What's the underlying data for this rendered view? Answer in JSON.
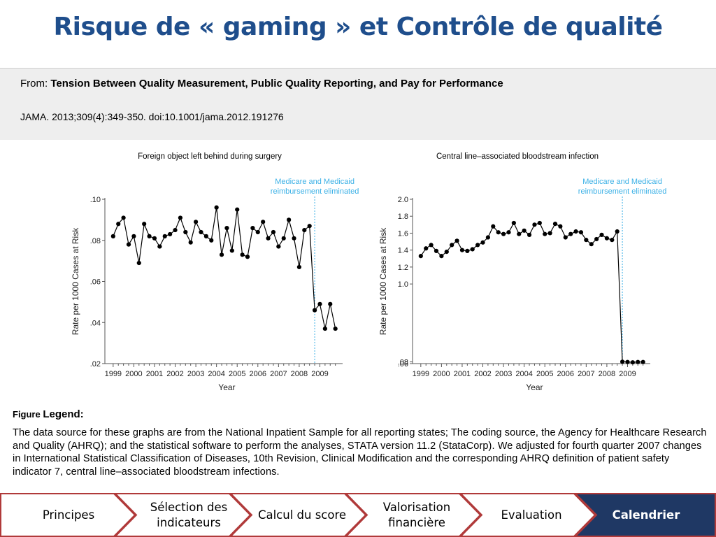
{
  "slide": {
    "title": "Risque de « gaming » et Contrôle de qualité"
  },
  "source": {
    "from_prefix": "From: ",
    "article_title": "Tension Between Quality Measurement, Public Quality Reporting, and Pay for Performance",
    "journal": "JAMA. 2013;309(4):349-350. doi:10.1001/jama.2012.191276"
  },
  "legend": {
    "label_small": "Figure ",
    "label_big": "Legend:",
    "text": "The data source for these graphs are from the National Inpatient Sample for all reporting states; The coding source, the Agency for Healthcare Research and Quality (AHRQ); and the statistical software to perform the analyses, STATA version 11.2 (StataCorp). We adjusted for fourth quarter 2007 changes in International Statistical Classification of Diseases, 10th Revision, Clinical Modification and the corresponding AHRQ definition of patient safety indicator 7, central line–associated bloodstream infections."
  },
  "nav": {
    "items": [
      {
        "label": "Principes",
        "active": false
      },
      {
        "label": "Sélection des indicateurs",
        "active": false
      },
      {
        "label": "Calcul du score",
        "active": false
      },
      {
        "label": "Valorisation financière",
        "active": false
      },
      {
        "label": "Evaluation",
        "active": false
      },
      {
        "label": "Calendrier",
        "active": true
      }
    ],
    "colors": {
      "inactive_fill": "#ffffff",
      "active_fill": "#1f3864",
      "border": "#b03a3a"
    }
  },
  "colors": {
    "title": "#1f4e8c",
    "series": "#000000",
    "marker_line": "#3ab0e6"
  },
  "chart_data": [
    {
      "type": "line",
      "title": "Foreign object left behind during surgery",
      "xlabel": "Year",
      "ylabel": "Rate per 1000 Cases at Risk",
      "xlim": [
        1998.6,
        2010.1
      ],
      "ylim": [
        0.02,
        0.1
      ],
      "yticks": [
        0.02,
        0.04,
        0.06,
        0.08,
        0.1
      ],
      "ytick_labels": [
        ".02",
        ".04",
        ".06",
        ".08",
        ".10"
      ],
      "xticks": [
        1999,
        2000,
        2001,
        2002,
        2003,
        2004,
        2005,
        2006,
        2007,
        2008,
        2009
      ],
      "xtick_labels": [
        "1999",
        "2000",
        "2001",
        "2002",
        "2003",
        "2004",
        "2005",
        "2006",
        "2007",
        "2008",
        "2009"
      ],
      "grid": false,
      "annotation": {
        "x": 2008.75,
        "lines": [
          "Medicare and Medicaid",
          "reimbursement eliminated"
        ]
      },
      "series": [
        {
          "x": [
            1999.0,
            1999.25,
            1999.5,
            1999.75,
            2000.0,
            2000.25,
            2000.5,
            2000.75,
            2001.0,
            2001.25,
            2001.5,
            2001.75,
            2002.0,
            2002.25,
            2002.5,
            2002.75,
            2003.0,
            2003.25,
            2003.5,
            2003.75,
            2004.0,
            2004.25,
            2004.5,
            2004.75,
            2005.0,
            2005.25,
            2005.5,
            2005.75,
            2006.0,
            2006.25,
            2006.5,
            2006.75,
            2007.0,
            2007.25,
            2007.5,
            2007.75,
            2008.0,
            2008.25,
            2008.5,
            2008.75,
            2009.0,
            2009.25,
            2009.5,
            2009.75
          ],
          "values": [
            0.082,
            0.088,
            0.091,
            0.078,
            0.082,
            0.069,
            0.088,
            0.082,
            0.081,
            0.077,
            0.082,
            0.083,
            0.085,
            0.091,
            0.084,
            0.079,
            0.089,
            0.084,
            0.082,
            0.08,
            0.096,
            0.073,
            0.086,
            0.075,
            0.095,
            0.073,
            0.072,
            0.086,
            0.084,
            0.089,
            0.081,
            0.084,
            0.077,
            0.081,
            0.09,
            0.081,
            0.067,
            0.085,
            0.087,
            0.046,
            0.049,
            0.037,
            0.049,
            0.037
          ]
        }
      ]
    },
    {
      "type": "line",
      "title": "Central line–associated bloodstream infection",
      "xlabel": "Year",
      "ylabel": "Rate per 1000 Cases at Risk",
      "xlim": [
        1998.6,
        2010.1
      ],
      "ylim": [
        0.06,
        2.0
      ],
      "yticks": [
        0.06,
        0.08,
        1.0,
        1.2,
        1.4,
        1.6,
        1.8,
        2.0
      ],
      "ytick_labels": [
        ".06",
        ".08",
        "1.0",
        "1.2",
        "1.4",
        "1.6",
        "1.8",
        "2.0"
      ],
      "xticks": [
        1999,
        2000,
        2001,
        2002,
        2003,
        2004,
        2005,
        2006,
        2007,
        2008,
        2009
      ],
      "xtick_labels": [
        "1999",
        "2000",
        "2001",
        "2002",
        "2003",
        "2004",
        "2005",
        "2006",
        "2007",
        "2008",
        "2009"
      ],
      "grid": false,
      "annotation": {
        "x": 2008.75,
        "lines": [
          "Medicare and Medicaid",
          "reimbursement eliminated"
        ]
      },
      "series": [
        {
          "x": [
            1999.0,
            1999.25,
            1999.5,
            1999.75,
            2000.0,
            2000.25,
            2000.5,
            2000.75,
            2001.0,
            2001.25,
            2001.5,
            2001.75,
            2002.0,
            2002.25,
            2002.5,
            2002.75,
            2003.0,
            2003.25,
            2003.5,
            2003.75,
            2004.0,
            2004.25,
            2004.5,
            2004.75,
            2005.0,
            2005.25,
            2005.5,
            2005.75,
            2006.0,
            2006.25,
            2006.5,
            2006.75,
            2007.0,
            2007.25,
            2007.5,
            2007.75,
            2008.0,
            2008.25,
            2008.5,
            2008.75,
            2009.0,
            2009.25,
            2009.5,
            2009.75
          ],
          "values": [
            1.33,
            1.42,
            1.46,
            1.39,
            1.33,
            1.38,
            1.46,
            1.51,
            1.4,
            1.39,
            1.41,
            1.46,
            1.49,
            1.55,
            1.68,
            1.61,
            1.59,
            1.61,
            1.72,
            1.59,
            1.63,
            1.58,
            1.7,
            1.72,
            1.59,
            1.6,
            1.71,
            1.68,
            1.55,
            1.59,
            1.62,
            1.61,
            1.52,
            1.47,
            1.53,
            1.58,
            1.54,
            1.52,
            1.62,
            0.082,
            0.079,
            0.075,
            0.079,
            0.079
          ]
        }
      ]
    }
  ]
}
